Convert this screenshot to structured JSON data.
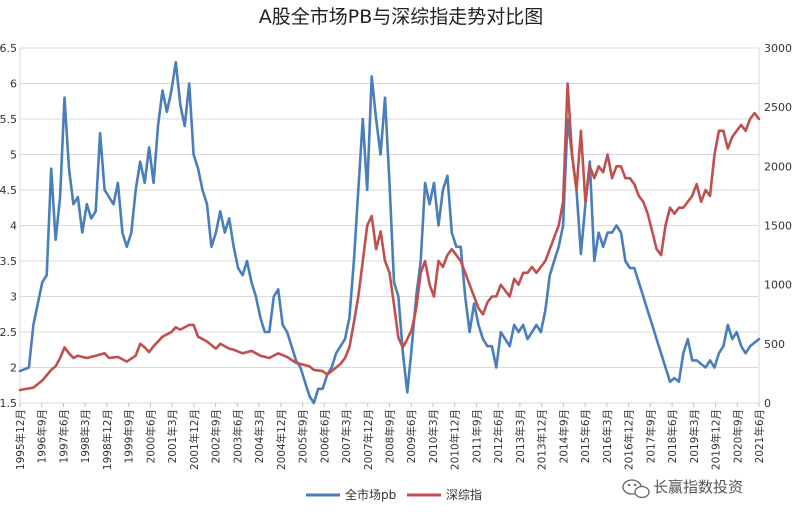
{
  "chart_data": {
    "type": "line",
    "title": "A股全市场PB与深综指走势对比图",
    "left_axis": {
      "ticks": [
        "1.5",
        "2",
        "2.5",
        "3",
        "3.5",
        "4",
        "4.5",
        "5",
        "5.5",
        "6",
        "6.5"
      ],
      "ylim": [
        1.5,
        6.5
      ]
    },
    "right_axis": {
      "ticks": [
        "0",
        "500",
        "1000",
        "1500",
        "2000",
        "2500",
        "3000"
      ],
      "ylim": [
        0,
        3000
      ]
    },
    "x_tick_labels": [
      "1995年12月",
      "1996年9月",
      "1997年6月",
      "1998年3月",
      "1998年12月",
      "1999年9月",
      "2000年6月",
      "2001年3月",
      "2001年12月",
      "2002年9月",
      "2003年6月",
      "2004年3月",
      "2004年12月",
      "2005年9月",
      "2006年6月",
      "2007年3月",
      "2007年12月",
      "2008年9月",
      "2009年6月",
      "2010年3月",
      "2010年12月",
      "2011年9月",
      "2012年6月",
      "2013年3月",
      "2013年12月",
      "2014年9月",
      "2015年6月",
      "2016年3月",
      "2016年12月",
      "2017年9月",
      "2018年6月",
      "2019年3月",
      "2019年12月",
      "2020年9月",
      "2021年6月"
    ],
    "series": [
      {
        "name": "全市场pb",
        "axis": "left",
        "color": "#4a7ebb",
        "points": [
          [
            0,
            1.95
          ],
          [
            2,
            2.0
          ],
          [
            3,
            2.6
          ],
          [
            4,
            2.9
          ],
          [
            5,
            3.2
          ],
          [
            6,
            3.3
          ],
          [
            7,
            4.8
          ],
          [
            8,
            3.8
          ],
          [
            9,
            4.4
          ],
          [
            10,
            5.8
          ],
          [
            11,
            4.8
          ],
          [
            12,
            4.3
          ],
          [
            13,
            4.4
          ],
          [
            14,
            3.9
          ],
          [
            15,
            4.3
          ],
          [
            16,
            4.1
          ],
          [
            17,
            4.2
          ],
          [
            18,
            5.3
          ],
          [
            19,
            4.5
          ],
          [
            20,
            4.4
          ],
          [
            21,
            4.3
          ],
          [
            22,
            4.6
          ],
          [
            23,
            3.9
          ],
          [
            24,
            3.7
          ],
          [
            25,
            3.9
          ],
          [
            26,
            4.5
          ],
          [
            27,
            4.9
          ],
          [
            28,
            4.6
          ],
          [
            29,
            5.1
          ],
          [
            30,
            4.6
          ],
          [
            31,
            5.4
          ],
          [
            32,
            5.9
          ],
          [
            33,
            5.6
          ],
          [
            34,
            5.9
          ],
          [
            35,
            6.3
          ],
          [
            36,
            5.7
          ],
          [
            37,
            5.4
          ],
          [
            38,
            6.0
          ],
          [
            39,
            5.0
          ],
          [
            40,
            4.8
          ],
          [
            41,
            4.5
          ],
          [
            42,
            4.3
          ],
          [
            43,
            3.7
          ],
          [
            44,
            3.9
          ],
          [
            45,
            4.2
          ],
          [
            46,
            3.9
          ],
          [
            47,
            4.1
          ],
          [
            48,
            3.7
          ],
          [
            49,
            3.4
          ],
          [
            50,
            3.3
          ],
          [
            51,
            3.5
          ],
          [
            52,
            3.2
          ],
          [
            53,
            3.0
          ],
          [
            54,
            2.7
          ],
          [
            55,
            2.5
          ],
          [
            56,
            2.5
          ],
          [
            57,
            3.0
          ],
          [
            58,
            3.1
          ],
          [
            59,
            2.6
          ],
          [
            60,
            2.5
          ],
          [
            61,
            2.3
          ],
          [
            62,
            2.1
          ],
          [
            63,
            2.0
          ],
          [
            64,
            1.8
          ],
          [
            65,
            1.6
          ],
          [
            66,
            1.5
          ],
          [
            67,
            1.7
          ],
          [
            68,
            1.7
          ],
          [
            69,
            1.9
          ],
          [
            70,
            2.0
          ],
          [
            71,
            2.2
          ],
          [
            72,
            2.3
          ],
          [
            73,
            2.4
          ],
          [
            74,
            2.7
          ],
          [
            75,
            3.5
          ],
          [
            76,
            4.5
          ],
          [
            77,
            5.5
          ],
          [
            78,
            4.5
          ],
          [
            79,
            6.1
          ],
          [
            80,
            5.5
          ],
          [
            81,
            5.0
          ],
          [
            82,
            5.8
          ],
          [
            83,
            4.6
          ],
          [
            84,
            3.2
          ],
          [
            85,
            3.0
          ],
          [
            86,
            2.2
          ],
          [
            87,
            1.65
          ],
          [
            88,
            2.3
          ],
          [
            89,
            3.0
          ],
          [
            90,
            3.5
          ],
          [
            91,
            4.6
          ],
          [
            92,
            4.3
          ],
          [
            93,
            4.6
          ],
          [
            94,
            4.0
          ],
          [
            95,
            4.5
          ],
          [
            96,
            4.7
          ],
          [
            97,
            3.9
          ],
          [
            98,
            3.7
          ],
          [
            99,
            3.7
          ],
          [
            100,
            3.0
          ],
          [
            101,
            2.5
          ],
          [
            102,
            2.9
          ],
          [
            103,
            2.6
          ],
          [
            104,
            2.4
          ],
          [
            105,
            2.3
          ],
          [
            106,
            2.3
          ],
          [
            107,
            2.0
          ],
          [
            108,
            2.5
          ],
          [
            109,
            2.4
          ],
          [
            110,
            2.3
          ],
          [
            111,
            2.6
          ],
          [
            112,
            2.5
          ],
          [
            113,
            2.6
          ],
          [
            114,
            2.4
          ],
          [
            115,
            2.5
          ],
          [
            116,
            2.6
          ],
          [
            117,
            2.5
          ],
          [
            118,
            2.8
          ],
          [
            119,
            3.3
          ],
          [
            120,
            3.5
          ],
          [
            121,
            3.7
          ],
          [
            122,
            4.0
          ],
          [
            123,
            5.5
          ],
          [
            124,
            5.0
          ],
          [
            125,
            4.5
          ],
          [
            126,
            3.6
          ],
          [
            127,
            4.3
          ],
          [
            128,
            4.9
          ],
          [
            129,
            3.5
          ],
          [
            130,
            3.9
          ],
          [
            131,
            3.7
          ],
          [
            132,
            3.9
          ],
          [
            133,
            3.9
          ],
          [
            134,
            4.0
          ],
          [
            135,
            3.9
          ],
          [
            136,
            3.5
          ],
          [
            137,
            3.4
          ],
          [
            138,
            3.4
          ],
          [
            139,
            3.2
          ],
          [
            140,
            3.0
          ],
          [
            141,
            2.8
          ],
          [
            142,
            2.6
          ],
          [
            143,
            2.4
          ],
          [
            144,
            2.2
          ],
          [
            145,
            2.0
          ],
          [
            146,
            1.8
          ],
          [
            147,
            1.85
          ],
          [
            148,
            1.8
          ],
          [
            149,
            2.2
          ],
          [
            150,
            2.4
          ],
          [
            151,
            2.1
          ],
          [
            152,
            2.1
          ],
          [
            153,
            2.05
          ],
          [
            154,
            2.0
          ],
          [
            155,
            2.1
          ],
          [
            156,
            2.0
          ],
          [
            157,
            2.2
          ],
          [
            158,
            2.3
          ],
          [
            159,
            2.6
          ],
          [
            160,
            2.4
          ],
          [
            161,
            2.5
          ],
          [
            162,
            2.3
          ],
          [
            163,
            2.2
          ],
          [
            164,
            2.3
          ],
          [
            165,
            2.35
          ],
          [
            166,
            2.4
          ]
        ]
      },
      {
        "name": "深综指",
        "axis": "right",
        "color": "#c0504d",
        "points": [
          [
            0,
            110
          ],
          [
            3,
            130
          ],
          [
            5,
            190
          ],
          [
            7,
            280
          ],
          [
            8,
            310
          ],
          [
            9,
            380
          ],
          [
            10,
            470
          ],
          [
            11,
            420
          ],
          [
            12,
            380
          ],
          [
            13,
            400
          ],
          [
            14,
            390
          ],
          [
            15,
            380
          ],
          [
            17,
            400
          ],
          [
            19,
            420
          ],
          [
            20,
            380
          ],
          [
            22,
            390
          ],
          [
            24,
            350
          ],
          [
            26,
            400
          ],
          [
            27,
            500
          ],
          [
            28,
            470
          ],
          [
            29,
            430
          ],
          [
            30,
            480
          ],
          [
            32,
            560
          ],
          [
            34,
            600
          ],
          [
            35,
            640
          ],
          [
            36,
            620
          ],
          [
            38,
            660
          ],
          [
            39,
            660
          ],
          [
            40,
            560
          ],
          [
            42,
            520
          ],
          [
            44,
            460
          ],
          [
            45,
            500
          ],
          [
            47,
            460
          ],
          [
            48,
            450
          ],
          [
            50,
            420
          ],
          [
            51,
            430
          ],
          [
            52,
            440
          ],
          [
            54,
            400
          ],
          [
            56,
            380
          ],
          [
            58,
            420
          ],
          [
            60,
            390
          ],
          [
            62,
            340
          ],
          [
            64,
            320
          ],
          [
            65,
            310
          ],
          [
            66,
            280
          ],
          [
            68,
            270
          ],
          [
            69,
            240
          ],
          [
            70,
            270
          ],
          [
            72,
            330
          ],
          [
            73,
            380
          ],
          [
            74,
            470
          ],
          [
            75,
            680
          ],
          [
            76,
            900
          ],
          [
            77,
            1200
          ],
          [
            78,
            1500
          ],
          [
            79,
            1580
          ],
          [
            80,
            1300
          ],
          [
            81,
            1450
          ],
          [
            82,
            1200
          ],
          [
            83,
            1100
          ],
          [
            84,
            830
          ],
          [
            85,
            550
          ],
          [
            86,
            470
          ],
          [
            87,
            540
          ],
          [
            88,
            620
          ],
          [
            89,
            800
          ],
          [
            90,
            1100
          ],
          [
            91,
            1200
          ],
          [
            92,
            1000
          ],
          [
            93,
            900
          ],
          [
            94,
            1200
          ],
          [
            95,
            1150
          ],
          [
            96,
            1250
          ],
          [
            97,
            1300
          ],
          [
            98,
            1250
          ],
          [
            99,
            1200
          ],
          [
            100,
            1100
          ],
          [
            101,
            1000
          ],
          [
            102,
            900
          ],
          [
            103,
            800
          ],
          [
            104,
            750
          ],
          [
            105,
            850
          ],
          [
            106,
            900
          ],
          [
            107,
            900
          ],
          [
            108,
            1000
          ],
          [
            109,
            950
          ],
          [
            110,
            900
          ],
          [
            111,
            1050
          ],
          [
            112,
            1000
          ],
          [
            113,
            1100
          ],
          [
            114,
            1100
          ],
          [
            115,
            1150
          ],
          [
            116,
            1100
          ],
          [
            117,
            1150
          ],
          [
            118,
            1200
          ],
          [
            119,
            1300
          ],
          [
            120,
            1400
          ],
          [
            121,
            1500
          ],
          [
            122,
            1700
          ],
          [
            123,
            2700
          ],
          [
            124,
            2100
          ],
          [
            125,
            1800
          ],
          [
            126,
            2300
          ],
          [
            127,
            1700
          ],
          [
            128,
            2000
          ],
          [
            129,
            1900
          ],
          [
            130,
            2000
          ],
          [
            131,
            1950
          ],
          [
            132,
            2100
          ],
          [
            133,
            1900
          ],
          [
            134,
            2000
          ],
          [
            135,
            2000
          ],
          [
            136,
            1900
          ],
          [
            137,
            1900
          ],
          [
            138,
            1850
          ],
          [
            139,
            1750
          ],
          [
            140,
            1700
          ],
          [
            141,
            1600
          ],
          [
            142,
            1450
          ],
          [
            143,
            1300
          ],
          [
            144,
            1250
          ],
          [
            145,
            1500
          ],
          [
            146,
            1650
          ],
          [
            147,
            1600
          ],
          [
            148,
            1650
          ],
          [
            149,
            1650
          ],
          [
            150,
            1700
          ],
          [
            151,
            1750
          ],
          [
            152,
            1850
          ],
          [
            153,
            1700
          ],
          [
            154,
            1800
          ],
          [
            155,
            1750
          ],
          [
            156,
            2100
          ],
          [
            157,
            2300
          ],
          [
            158,
            2300
          ],
          [
            159,
            2150
          ],
          [
            160,
            2250
          ],
          [
            161,
            2300
          ],
          [
            162,
            2350
          ],
          [
            163,
            2300
          ],
          [
            164,
            2400
          ],
          [
            165,
            2450
          ],
          [
            166,
            2400
          ]
        ]
      }
    ],
    "legend": {
      "position": "bottom-center"
    }
  },
  "watermark": {
    "text": "长赢指数投资"
  }
}
